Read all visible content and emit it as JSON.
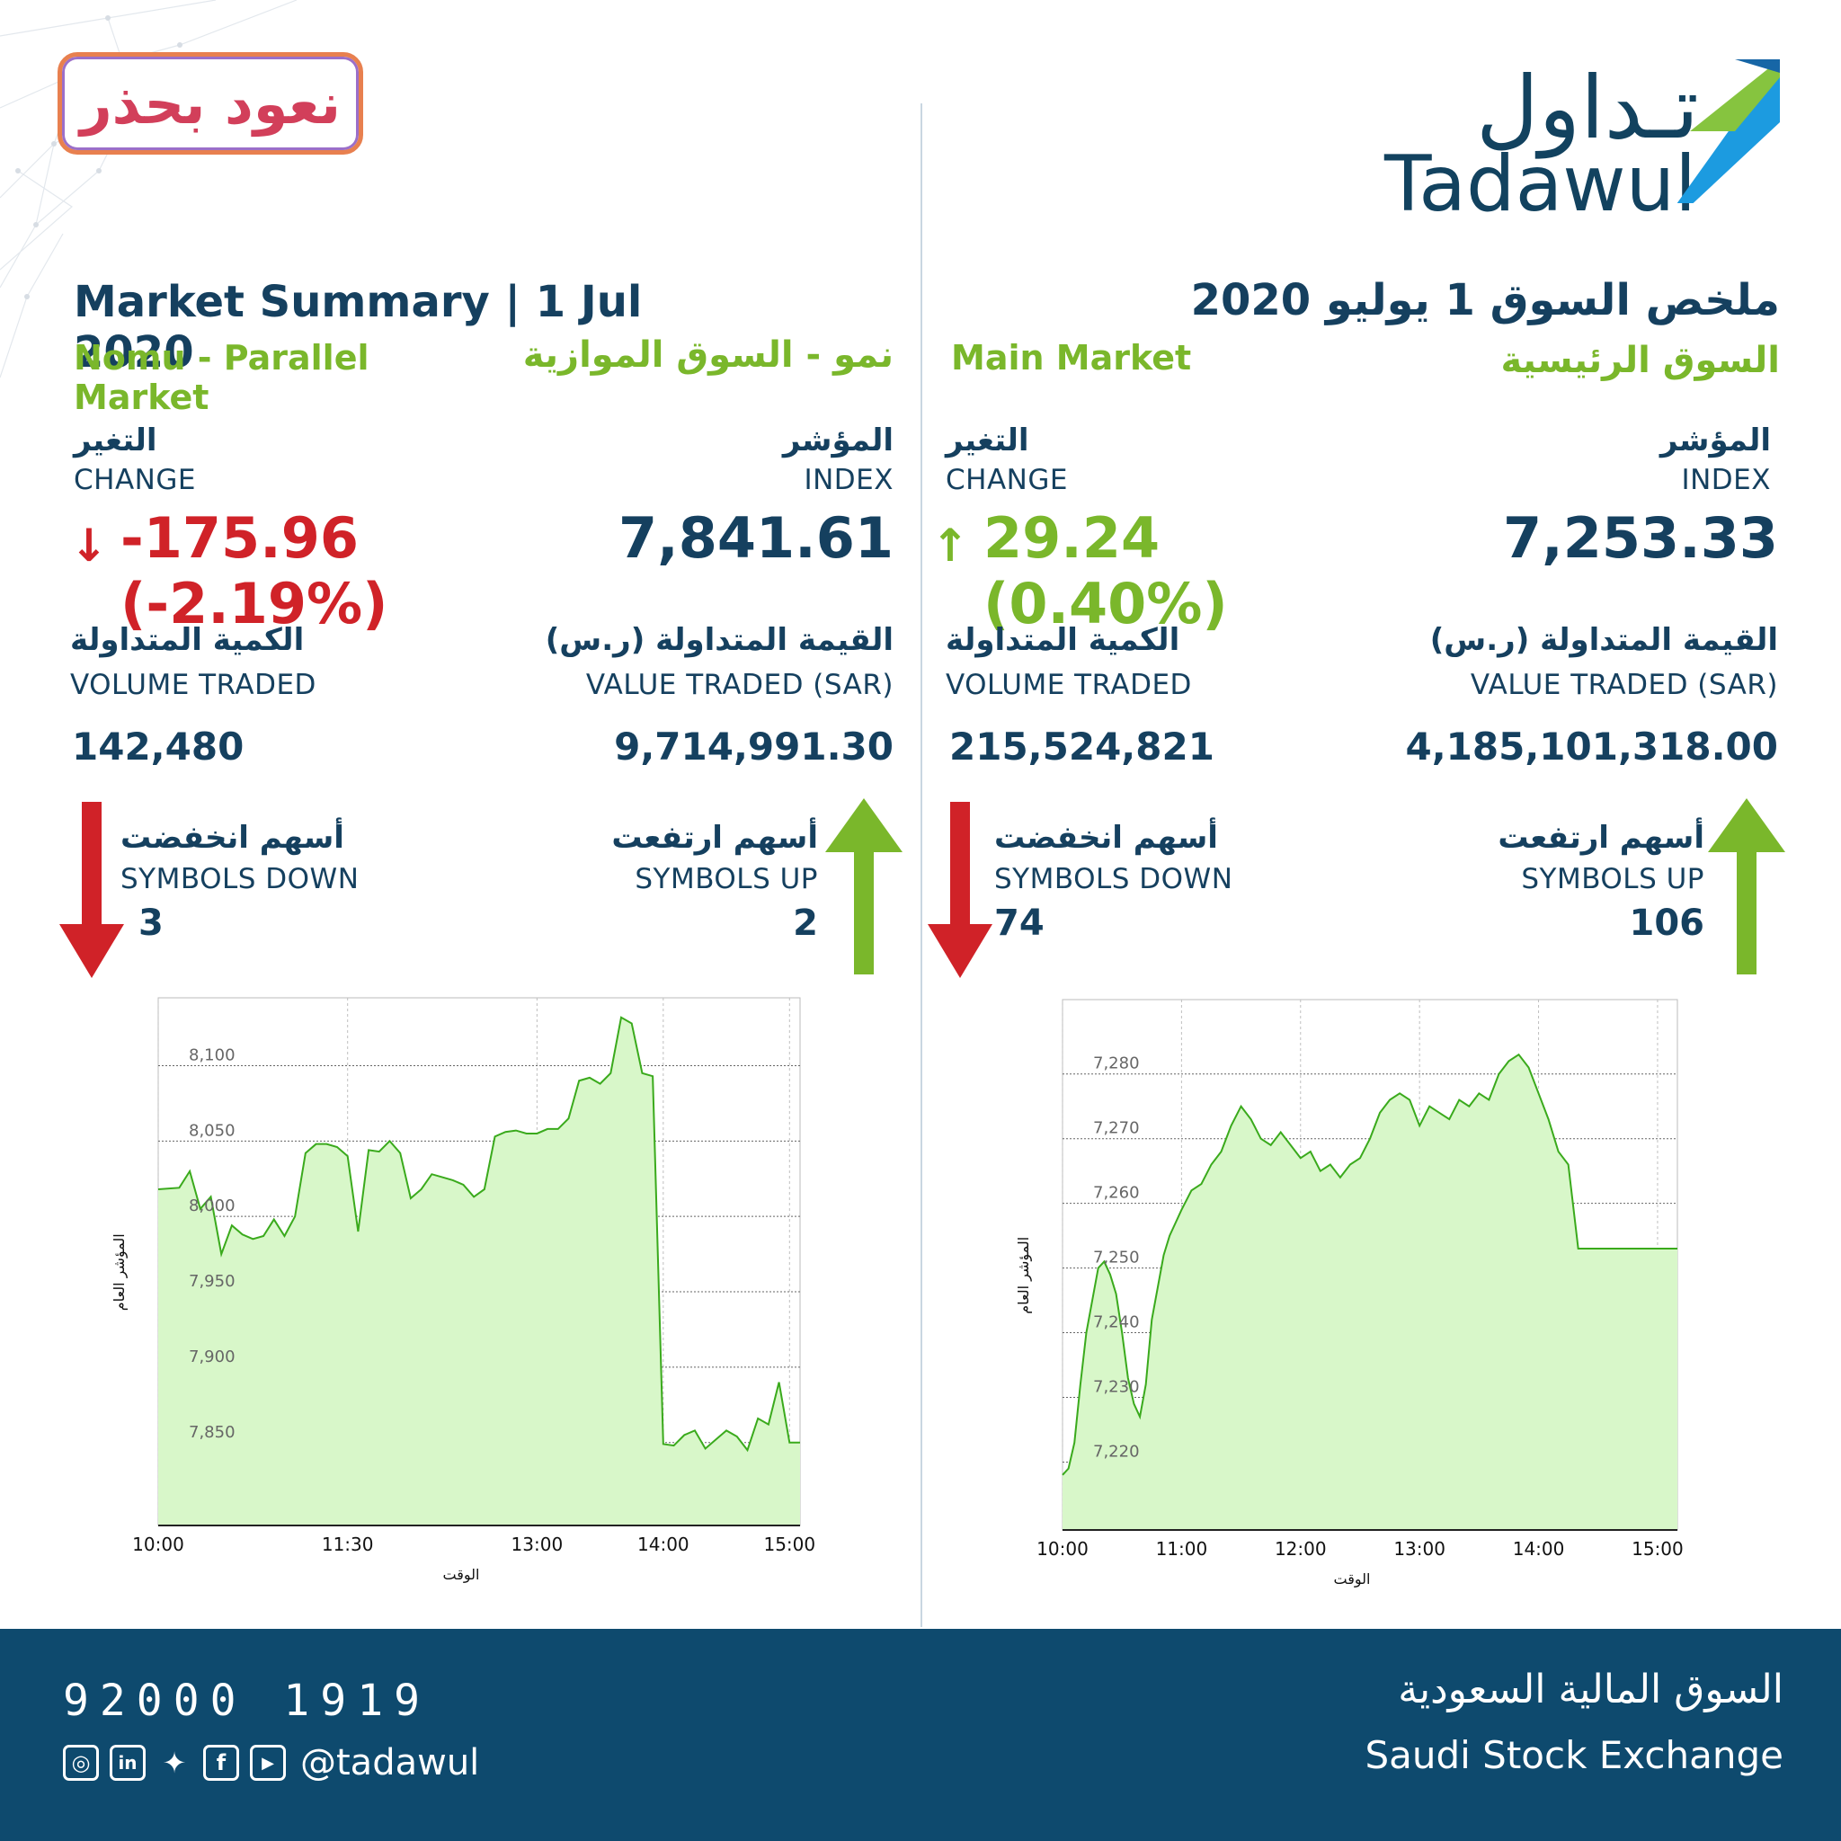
{
  "header": {
    "campaign_logo": "نعود بحذر",
    "brand_ar": "تـداول",
    "brand_en": "Tadawul",
    "title_ar": "ملخص السوق 1 يوليو 2020",
    "title_en": "Market Summary | 1 Jul 2020"
  },
  "nomu": {
    "market_en": "Nomu - Parallel Market",
    "market_ar": "نمو - السوق الموازية",
    "index_label_ar": "المؤشر",
    "index_label_en": "INDEX",
    "index_value": "7,841.61",
    "change_label_ar": "التغير",
    "change_label_en": "CHANGE",
    "change_value": "-175.96 (-2.19%)",
    "change_direction": "down",
    "value_label_ar": "القيمة المتداولة (ر.س)",
    "value_label_en": "VALUE TRADED (SAR)",
    "value_traded": "9,714,991.30",
    "volume_label_ar": "الكمية المتداولة",
    "volume_label_en": "VOLUME TRADED",
    "volume_traded": "142,480",
    "up_label_ar": "أسهم ارتفعت",
    "up_label_en": "SYMBOLS UP",
    "symbols_up": "2",
    "down_label_ar": "أسهم انخفضت",
    "down_label_en": "SYMBOLS DOWN",
    "symbols_down": "3"
  },
  "main": {
    "market_en": "Main Market",
    "market_ar": "السوق الرئيسية",
    "index_label_ar": "المؤشر",
    "index_label_en": "INDEX",
    "index_value": "7,253.33",
    "change_label_ar": "التغير",
    "change_label_en": "CHANGE",
    "change_value": "29.24 (0.40%)",
    "change_direction": "up",
    "value_label_ar": "القيمة المتداولة (ر.س)",
    "value_label_en": "VALUE TRADED (SAR)",
    "value_traded": "4,185,101,318.00",
    "volume_label_ar": "الكمية المتداولة",
    "volume_label_en": "VOLUME TRADED",
    "volume_traded": "215,524,821",
    "up_label_ar": "أسهم ارتفعت",
    "up_label_en": "SYMBOLS UP",
    "symbols_up": "106",
    "down_label_ar": "أسهم انخفضت",
    "down_label_en": "SYMBOLS DOWN",
    "symbols_down": "74"
  },
  "colors": {
    "navy": "#15405f",
    "green": "#7ab72b",
    "red": "#d02228",
    "chart_fill": "#d8f7c9",
    "chart_line": "#3aaa1c",
    "footer_bg": "#0e4a6e"
  },
  "chart_data": [
    {
      "type": "area",
      "market": "nomu",
      "xlabel": "الوقت",
      "ylabel": "المؤشر العام",
      "x_ticks": [
        "10:00",
        "11:30",
        "13:00",
        "14:00",
        "15:00"
      ],
      "y_ticks": [
        "8,100",
        "8,050",
        "8,000",
        "7,950",
        "7,900",
        "7,850"
      ],
      "xlim": [
        "10:00",
        "15:05"
      ],
      "ylim": [
        7795,
        8145
      ],
      "grid": true,
      "x": [
        "10:00",
        "10:10",
        "10:15",
        "10:20",
        "10:25",
        "10:30",
        "10:35",
        "10:40",
        "10:45",
        "10:50",
        "10:55",
        "11:00",
        "11:05",
        "11:10",
        "11:15",
        "11:20",
        "11:25",
        "11:30",
        "11:35",
        "11:40",
        "11:45",
        "11:50",
        "11:55",
        "12:00",
        "12:05",
        "12:10",
        "12:15",
        "12:20",
        "12:25",
        "12:30",
        "12:35",
        "12:40",
        "12:45",
        "12:50",
        "12:55",
        "13:00",
        "13:05",
        "13:10",
        "13:15",
        "13:20",
        "13:25",
        "13:30",
        "13:35",
        "13:40",
        "13:45",
        "13:50",
        "13:55",
        "14:00",
        "14:05",
        "14:10",
        "14:15",
        "14:20",
        "14:25",
        "14:30",
        "14:35",
        "14:40",
        "14:45",
        "14:50",
        "14:55",
        "15:00",
        "15:05"
      ],
      "y": [
        8018,
        8019,
        8030,
        8005,
        8013,
        7975,
        7994,
        7988,
        7985,
        7987,
        7998,
        7987,
        8000,
        8042,
        8048,
        8048,
        8046,
        8040,
        7990,
        8044,
        8043,
        8050,
        8042,
        8012,
        8018,
        8028,
        8026,
        8024,
        8021,
        8013,
        8018,
        8053,
        8056,
        8057,
        8055,
        8055,
        8058,
        8058,
        8065,
        8090,
        8092,
        8088,
        8095,
        8132,
        8128,
        8095,
        8093,
        7849,
        7848,
        7855,
        7858,
        7846,
        7852,
        7858,
        7854,
        7845,
        7866,
        7862,
        7890,
        7850,
        7850
      ],
      "annotations": []
    },
    {
      "type": "area",
      "market": "main",
      "xlabel": "الوقت",
      "ylabel": "المؤشر العام",
      "x_ticks": [
        "10:00",
        "11:00",
        "12:00",
        "13:00",
        "14:00",
        "15:00"
      ],
      "y_ticks": [
        "7,280",
        "7,270",
        "7,260",
        "7,250",
        "7,240",
        "7,230",
        "7,220"
      ],
      "xlim": [
        "10:00",
        "15:10"
      ],
      "ylim": [
        7209.5,
        7291.5
      ],
      "grid": true,
      "x": [
        "10:00",
        "10:03",
        "10:06",
        "10:09",
        "10:12",
        "10:15",
        "10:18",
        "10:21",
        "10:24",
        "10:27",
        "10:30",
        "10:33",
        "10:36",
        "10:39",
        "10:42",
        "10:45",
        "10:48",
        "10:51",
        "10:54",
        "10:57",
        "11:00",
        "11:05",
        "11:10",
        "11:15",
        "11:20",
        "11:25",
        "11:30",
        "11:35",
        "11:40",
        "11:45",
        "11:50",
        "11:55",
        "12:00",
        "12:05",
        "12:10",
        "12:15",
        "12:20",
        "12:25",
        "12:30",
        "12:35",
        "12:40",
        "12:45",
        "12:50",
        "12:55",
        "13:00",
        "13:05",
        "13:10",
        "13:15",
        "13:20",
        "13:25",
        "13:30",
        "13:35",
        "13:40",
        "13:45",
        "13:50",
        "13:55",
        "14:00",
        "14:05",
        "14:10",
        "14:15",
        "14:20",
        "14:25",
        "14:30",
        "14:35",
        "14:40",
        "14:45",
        "14:50",
        "14:55",
        "15:00",
        "15:03",
        "15:06",
        "15:10"
      ],
      "y": [
        7218,
        7219,
        7223,
        7232,
        7240,
        7245,
        7250,
        7251,
        7249,
        7246,
        7240,
        7233,
        7229,
        7227,
        7232,
        7242,
        7247,
        7252,
        7255,
        7257,
        7259,
        7262,
        7263,
        7266,
        7268,
        7272,
        7275,
        7273,
        7270,
        7269,
        7271,
        7269,
        7267,
        7268,
        7265,
        7266,
        7264,
        7266,
        7267,
        7270,
        7274,
        7276,
        7277,
        7276,
        7272,
        7275,
        7274,
        7273,
        7276,
        7275,
        7277,
        7276,
        7280,
        7282,
        7283,
        7281,
        7277,
        7273,
        7268,
        7266,
        7253,
        7253,
        7253,
        7253,
        7253,
        7253,
        7253,
        7253,
        7253,
        7253,
        7253,
        7253
      ],
      "annotations": []
    }
  ],
  "footer": {
    "phone": "92000 1919",
    "handle": "@tadawul",
    "exchange_ar": "السوق المالية السعودية",
    "exchange_en": "Saudi Stock Exchange",
    "social_icons": [
      "instagram-icon",
      "linkedin-icon",
      "twitter-icon",
      "facebook-icon",
      "youtube-icon"
    ]
  }
}
